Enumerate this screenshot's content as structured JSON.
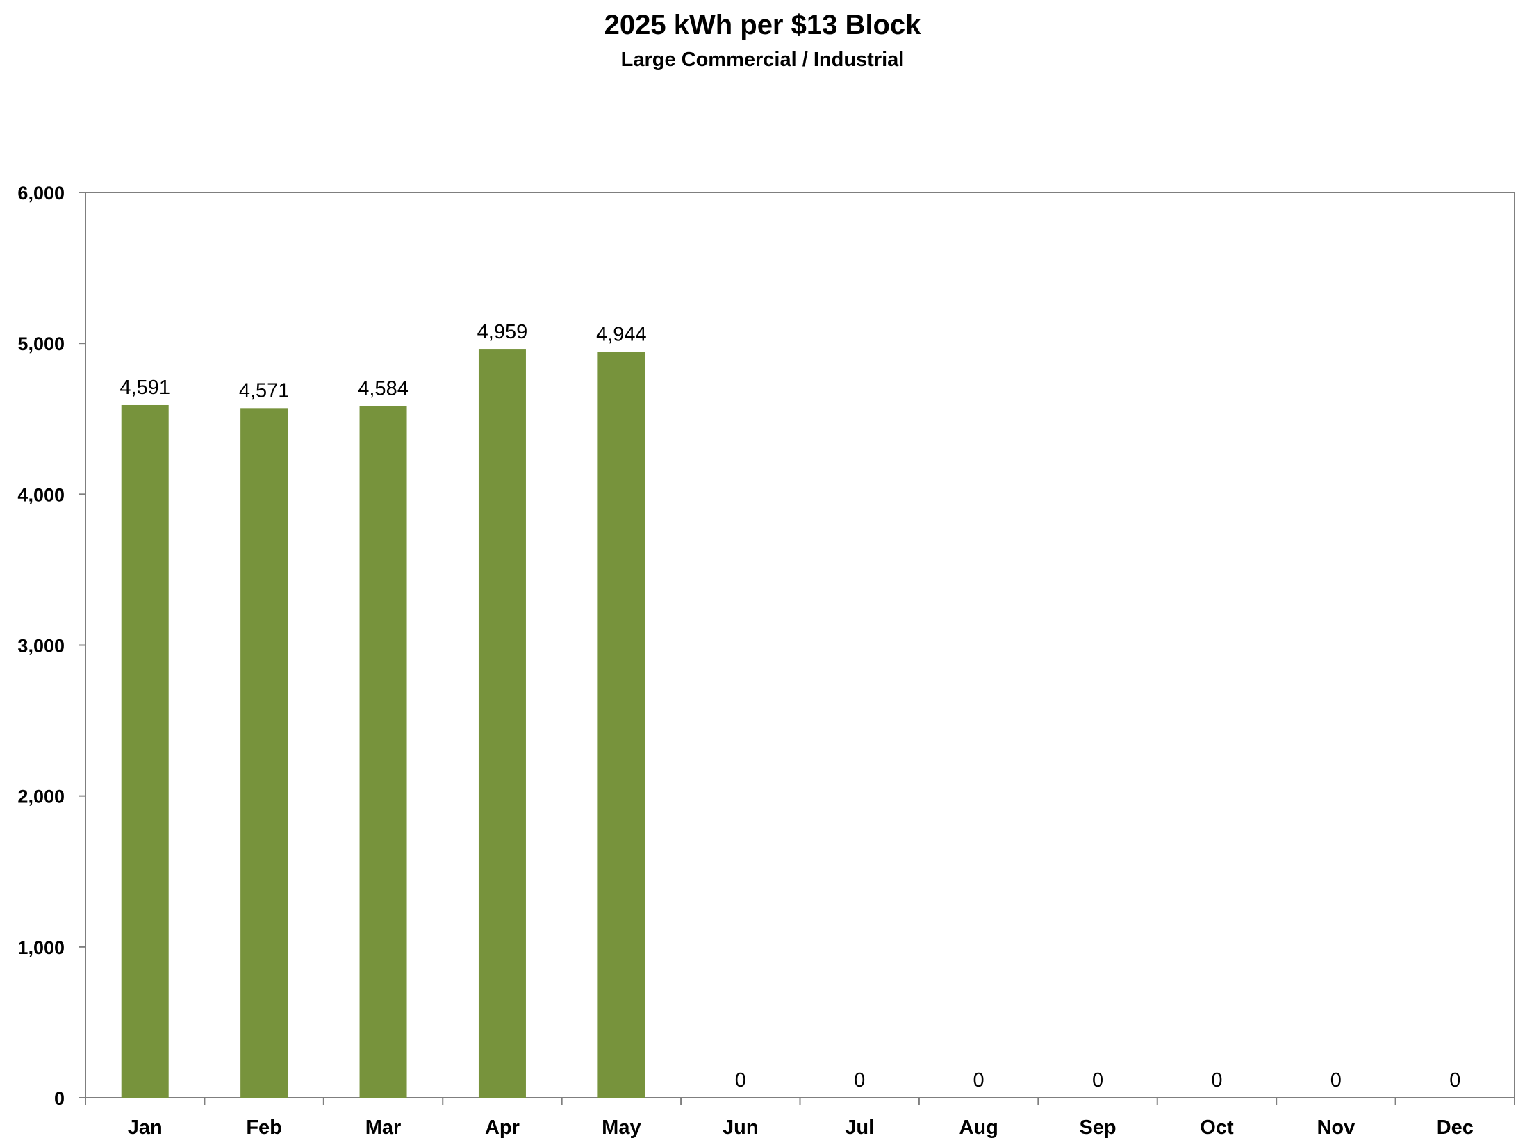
{
  "chart_data": {
    "type": "bar",
    "title": "2025 kWh per $13 Block",
    "subtitle": "Large Commercial / Industrial",
    "xlabel": "",
    "ylabel": "",
    "categories": [
      "Jan",
      "Feb",
      "Mar",
      "Apr",
      "May",
      "Jun",
      "Jul",
      "Aug",
      "Sep",
      "Oct",
      "Nov",
      "Dec"
    ],
    "values": [
      4591,
      4571,
      4584,
      4959,
      4944,
      0,
      0,
      0,
      0,
      0,
      0,
      0
    ],
    "data_labels": [
      "4,591",
      "4,571",
      "4,584",
      "4,959",
      "4,944",
      "0",
      "0",
      "0",
      "0",
      "0",
      "0",
      "0"
    ],
    "ylim": [
      0,
      6000
    ],
    "yticks": [
      0,
      1000,
      2000,
      3000,
      4000,
      5000,
      6000
    ],
    "ytick_labels": [
      "0",
      "1,000",
      "2,000",
      "3,000",
      "4,000",
      "5,000",
      "6,000"
    ],
    "grid": false,
    "legend": "none",
    "bar_color": "#77933c"
  }
}
